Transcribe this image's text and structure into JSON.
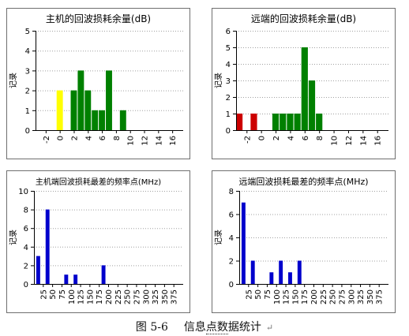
{
  "caption": {
    "figure": "图 5-6",
    "title_pre": "信息",
    "title_dotted": "点数",
    "title_post": "据统计",
    "return_mark": "↵"
  },
  "colors": {
    "green": "#008000",
    "yellow": "#ffff00",
    "red": "#cc0000",
    "blue": "#0000cc",
    "axis": "#000000",
    "grid": "#a0a0a0"
  },
  "chart_data": [
    {
      "type": "bar",
      "title": "主机的回波损耗余量(dB)",
      "ylabel": "记录",
      "xlabel": "",
      "ylim": [
        0,
        5
      ],
      "yticks": [
        0,
        1,
        2,
        3,
        4,
        5
      ],
      "xlim": [
        -3.5,
        17.5
      ],
      "xticks": [
        -2,
        0,
        2,
        4,
        6,
        8,
        10,
        12,
        14,
        16
      ],
      "xtick_labels": [
        "-2",
        "0",
        "2",
        "4",
        "6",
        "8",
        "10",
        "12",
        "14",
        "16"
      ],
      "bar_width": 1,
      "bars": [
        {
          "x": 0,
          "value": 2,
          "color": "yellow"
        },
        {
          "x": 2,
          "value": 2,
          "color": "green"
        },
        {
          "x": 3,
          "value": 3,
          "color": "green"
        },
        {
          "x": 4,
          "value": 2,
          "color": "green"
        },
        {
          "x": 5,
          "value": 1,
          "color": "green"
        },
        {
          "x": 6,
          "value": 1,
          "color": "green"
        },
        {
          "x": 7,
          "value": 3,
          "color": "green"
        },
        {
          "x": 9,
          "value": 1,
          "color": "green"
        }
      ]
    },
    {
      "type": "bar",
      "title": "远端的回波损耗余量(dB)",
      "ylabel": "记录",
      "xlabel": "",
      "ylim": [
        0,
        6
      ],
      "yticks": [
        0,
        1,
        2,
        3,
        4,
        5,
        6
      ],
      "xlim": [
        -3.5,
        17.5
      ],
      "xticks": [
        -2,
        0,
        2,
        4,
        6,
        8,
        10,
        12,
        14,
        16
      ],
      "xtick_labels": [
        "-2",
        "0",
        "2",
        "4",
        "6",
        "8",
        "10",
        "12",
        "14",
        "16"
      ],
      "bar_width": 1,
      "bars": [
        {
          "x": -3,
          "value": 1,
          "color": "red"
        },
        {
          "x": -1,
          "value": 1,
          "color": "red"
        },
        {
          "x": 2,
          "value": 1,
          "color": "green"
        },
        {
          "x": 3,
          "value": 1,
          "color": "green"
        },
        {
          "x": 4,
          "value": 1,
          "color": "green"
        },
        {
          "x": 5,
          "value": 1,
          "color": "green"
        },
        {
          "x": 6,
          "value": 5,
          "color": "green"
        },
        {
          "x": 7,
          "value": 3,
          "color": "green"
        },
        {
          "x": 8,
          "value": 1,
          "color": "green"
        }
      ]
    },
    {
      "type": "bar",
      "title": "主机端回波损耗最差的频率点(MHz)",
      "ylabel": "记录",
      "xlabel": "",
      "ylim": [
        0,
        10
      ],
      "yticks": [
        0,
        2,
        4,
        6,
        8,
        10
      ],
      "xlim": [
        0,
        400
      ],
      "xticks": [
        25,
        50,
        75,
        100,
        125,
        150,
        175,
        200,
        225,
        250,
        275,
        300,
        325,
        350,
        375
      ],
      "xtick_labels": [
        "25",
        "50",
        "75",
        "100",
        "125",
        "150",
        "175",
        "200",
        "225",
        "250",
        "275",
        "300",
        "325",
        "350",
        "375"
      ],
      "bar_width": 12.5,
      "bars": [
        {
          "x": 12.5,
          "value": 3,
          "color": "blue"
        },
        {
          "x": 37.5,
          "value": 8,
          "color": "blue"
        },
        {
          "x": 87.5,
          "value": 1,
          "color": "blue"
        },
        {
          "x": 112.5,
          "value": 1,
          "color": "blue"
        },
        {
          "x": 187.5,
          "value": 2,
          "color": "blue"
        }
      ]
    },
    {
      "type": "bar",
      "title": "远端回波损耗最差的频率点(MHz)",
      "ylabel": "记录",
      "xlabel": "",
      "ylim": [
        0,
        8
      ],
      "yticks": [
        0,
        2,
        4,
        6,
        8
      ],
      "xlim": [
        0,
        400
      ],
      "xticks": [
        25,
        50,
        75,
        100,
        125,
        150,
        175,
        200,
        225,
        250,
        275,
        300,
        325,
        350,
        375
      ],
      "xtick_labels": [
        "25",
        "50",
        "75",
        "100",
        "125",
        "150",
        "175",
        "200",
        "225",
        "250",
        "275",
        "300",
        "325",
        "350",
        "375"
      ],
      "bar_width": 12.5,
      "bars": [
        {
          "x": 12.5,
          "value": 7,
          "color": "blue"
        },
        {
          "x": 37.5,
          "value": 2,
          "color": "blue"
        },
        {
          "x": 87.5,
          "value": 1,
          "color": "blue"
        },
        {
          "x": 112.5,
          "value": 2,
          "color": "blue"
        },
        {
          "x": 137.5,
          "value": 1,
          "color": "blue"
        },
        {
          "x": 162.5,
          "value": 2,
          "color": "blue"
        }
      ]
    }
  ]
}
